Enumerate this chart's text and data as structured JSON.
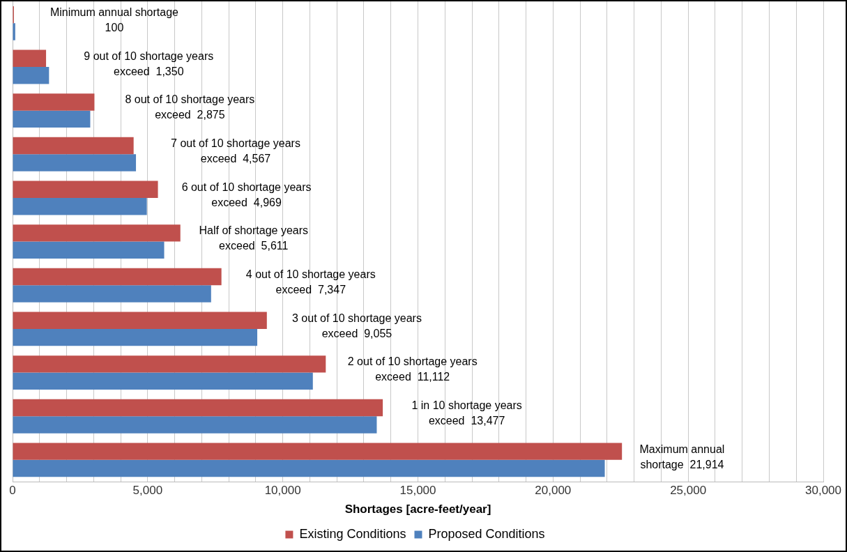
{
  "chart_data": {
    "type": "bar",
    "orientation": "horizontal",
    "xlabel": "Shortages [acre-feet/year]",
    "categories": [
      null,
      null,
      null,
      null,
      null,
      null,
      null,
      null,
      null,
      null,
      null
    ],
    "series": [
      {
        "name": "Existing Conditions",
        "color": "#c0504d",
        "values": [
          50,
          1240,
          3030,
          4480,
          5380,
          6210,
          7730,
          9410,
          11590,
          13700,
          22550
        ]
      },
      {
        "name": "Proposed Conditions",
        "color": "#4f81bd",
        "values": [
          100,
          1350,
          2875,
          4567,
          4969,
          5611,
          7347,
          9055,
          11112,
          13477,
          21914
        ],
        "value_labels": [
          "Minimum annual shortage\n100",
          "9 out of 10 shortage years\nexceed  1,350",
          "8 out of 10 shortage years\nexceed  2,875",
          "7 out of 10 shortage years\nexceed  4,567",
          "6 out of 10 shortage years\nexceed  4,969",
          "Half of shortage years\nexceed  5,611",
          "4 out of 10 shortage years\nexceed  7,347",
          "3 out of 10 shortage years\nexceed  9,055",
          "2 out of 10 shortage years\nexceed  11,112",
          "1 in 10 shortage years\nexceed  13,477",
          "Maximum annual\nshortage  21,914"
        ]
      }
    ],
    "xlim": [
      0,
      30000
    ],
    "xticks": [
      0,
      {
        "value": 1000,
        "label": null
      },
      {
        "value": 2000,
        "label": null
      },
      {
        "value": 3000,
        "label": null
      },
      {
        "value": 4000,
        "label": null
      },
      {
        "value": 5000,
        "label": "5,000"
      },
      {
        "value": 6000,
        "label": null
      },
      {
        "value": 7000,
        "label": null
      },
      {
        "value": 8000,
        "label": null
      },
      {
        "value": 9000,
        "label": null
      },
      {
        "value": 10000,
        "label": "10,000"
      },
      {
        "value": 11000,
        "label": null
      },
      {
        "value": 12000,
        "label": null
      },
      {
        "value": 13000,
        "label": null
      },
      {
        "value": 14000,
        "label": null
      },
      {
        "value": 15000,
        "label": "15,000"
      },
      {
        "value": 16000,
        "label": null
      },
      {
        "value": 17000,
        "label": null
      },
      {
        "value": 18000,
        "label": null
      },
      {
        "value": 19000,
        "label": null
      },
      {
        "value": 20000,
        "label": "20,000"
      },
      {
        "value": 21000,
        "label": null
      },
      {
        "value": 22000,
        "label": null
      },
      {
        "value": 23000,
        "label": null
      },
      {
        "value": 24000,
        "label": null
      },
      {
        "value": 25000,
        "label": "25,000"
      },
      {
        "value": 26000,
        "label": null
      },
      {
        "value": 27000,
        "label": null
      },
      {
        "value": 28000,
        "label": null
      },
      {
        "value": 29000,
        "label": null
      },
      {
        "value": 30000,
        "label": "30,000"
      }
    ],
    "grid": "x",
    "legend": "bottom"
  }
}
